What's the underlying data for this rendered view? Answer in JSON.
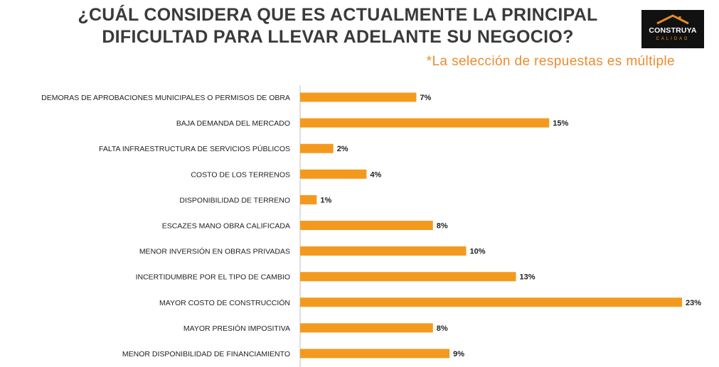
{
  "header": {
    "title_line1": "¿CUÁL CONSIDERA QUE ES ACTUALMENTE LA PRINCIPAL",
    "title_line2": "DIFICULTAD PARA LLEVAR ADELANTE SU NEGOCIO?",
    "subtitle": "*La selección de respuestas es múltiple"
  },
  "logo": {
    "brand": "CONSTRUYA",
    "tagline": "CALIDAD",
    "icon": "house-roof-icon"
  },
  "colors": {
    "bar": "#f39a1e",
    "title": "#3a3a3a",
    "subtitle": "#ef8a2c",
    "label": "#222222",
    "axis": "#bfbfbf"
  },
  "chart_data": {
    "type": "bar",
    "orientation": "horizontal",
    "categories": [
      "DEMORAS DE APROBACIONES MUNICIPALES O PERMISOS DE OBRA",
      "BAJA DEMANDA DEL MERCADO",
      "FALTA INFRAESTRUCTURA DE SERVICIOS PÚBLICOS",
      "COSTO DE LOS TERRENOS",
      "DISPONIBILIDAD DE TERRENO",
      "ESCAZES MANO OBRA CALIFICADA",
      "MENOR INVERSIÓN EN OBRAS PRIVADAS",
      "INCERTIDUMBRE POR EL TIPO DE CAMBIO",
      "MAYOR COSTO DE CONSTRUCCIÓN",
      "MAYOR PRESIÓN IMPOSITIVA",
      "MENOR DISPONIBILIDAD DE FINANCIAMIENTO"
    ],
    "values": [
      7,
      15,
      2,
      4,
      1,
      8,
      10,
      13,
      23,
      8,
      9
    ],
    "value_labels": [
      "7%",
      "15%",
      "2%",
      "4%",
      "1%",
      "8%",
      "10%",
      "13%",
      "23%",
      "8%",
      "9%"
    ],
    "unit": "%",
    "xlim": [
      0,
      23
    ],
    "grid": false,
    "legend": "none"
  }
}
